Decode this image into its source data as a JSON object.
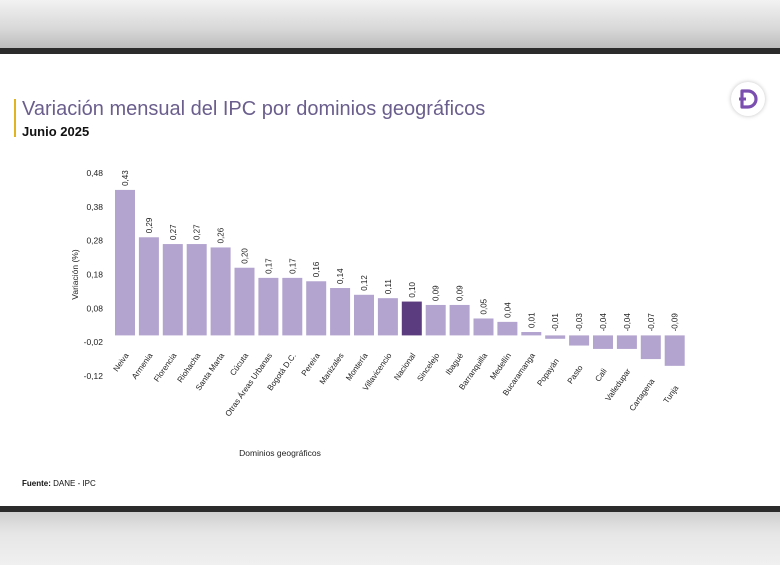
{
  "header": {
    "title": "Variación mensual del IPC por dominios geográficos",
    "subtitle": "Junio 2025"
  },
  "footer": {
    "source_label": "Fuente:",
    "source_value": "DANE - IPC"
  },
  "logo": {
    "icon": "dane-d-logo-icon",
    "color": "#7b4fb0"
  },
  "colors": {
    "bar": "#b3a4cf",
    "highlight": "#5b3c7e"
  },
  "chart_data": {
    "type": "bar",
    "title": "Variación mensual del IPC por dominios geográficos",
    "subtitle": "Junio 2025",
    "xlabel": "Dominios geográficos",
    "ylabel": "Variación (%)",
    "ylim": [
      -0.12,
      0.48
    ],
    "yticks": [
      "0,48",
      "0,38",
      "0,28",
      "0,18",
      "0,08",
      "-0,02",
      "-0,12"
    ],
    "ytick_values": [
      0.48,
      0.38,
      0.28,
      0.18,
      0.08,
      -0.02,
      -0.12
    ],
    "categories": [
      "Neiva",
      "Armenia",
      "Florencia",
      "Riohacha",
      "Santa Marta",
      "Cúcuta",
      "Otras Áreas Urbanas",
      "Bogotá D.C.",
      "Pereira",
      "Manizales",
      "Montería",
      "Villavicencio",
      "Nacional",
      "Sincelejo",
      "Ibagué",
      "Barranquilla",
      "Medellín",
      "Bucaramanga",
      "Popayán",
      "Pasto",
      "Cali",
      "Valledupar",
      "Cartagena",
      "Tunja"
    ],
    "values": [
      0.43,
      0.29,
      0.27,
      0.27,
      0.26,
      0.2,
      0.17,
      0.17,
      0.16,
      0.14,
      0.12,
      0.11,
      0.1,
      0.09,
      0.09,
      0.05,
      0.04,
      0.01,
      -0.01,
      -0.03,
      -0.04,
      -0.04,
      -0.07,
      -0.09
    ],
    "value_labels": [
      "0,43",
      "0,29",
      "0,27",
      "0,27",
      "0,26",
      "0,20",
      "0,17",
      "0,17",
      "0,16",
      "0,14",
      "0,12",
      "0,11",
      "0,10",
      "0,09",
      "0,09",
      "0,05",
      "0,04",
      "0,01",
      "-0,01",
      "-0,03",
      "-0,04",
      "-0,04",
      "-0,07",
      "-0,09"
    ],
    "highlight_category": "Nacional",
    "grid": false,
    "legend": "none"
  }
}
